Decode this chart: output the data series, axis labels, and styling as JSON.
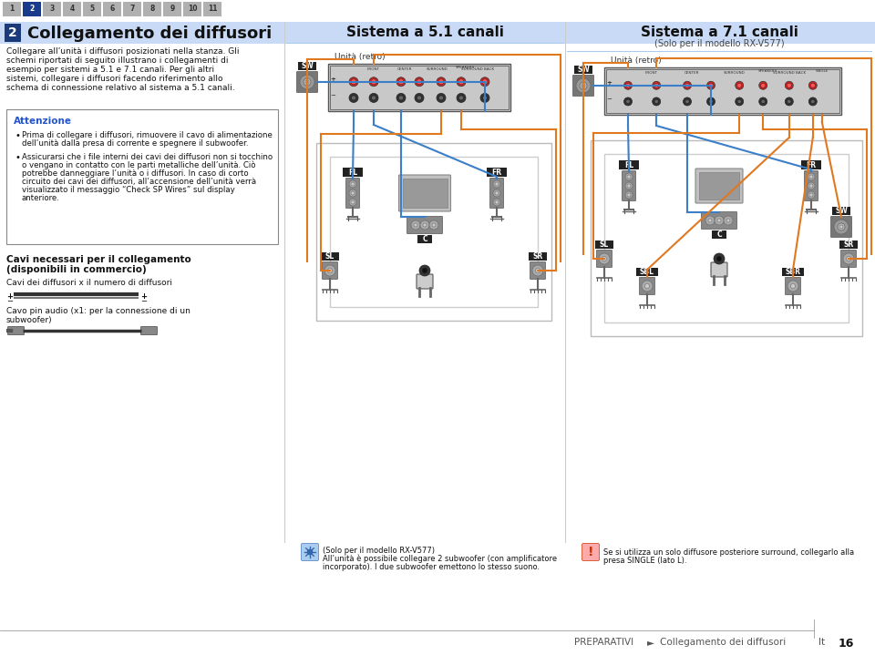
{
  "bg_color": "#ffffff",
  "tab_numbers": [
    "1",
    "2",
    "3",
    "4",
    "5",
    "6",
    "7",
    "8",
    "9",
    "10",
    "11"
  ],
  "tab_highlight": 1,
  "tab_bg_default": "#b0b0b0",
  "tab_bg_highlight": "#1a3a8c",
  "tab_text_default": "#333333",
  "tab_text_highlight": "#ffffff",
  "section_header_bg": "#c8daf5",
  "section_header_number": "2",
  "section_header_number_bg": "#1a3a7a",
  "section_header_text": "Collegamento dei diffusori",
  "intro_text": "Collegare all’unità i diffusori posizionati nella stanza. Gli schemi riportati di seguito illustrano i collegamenti di esempio per sistemi a 5.1 e 7.1 canali. Per gli altri sistemi, collegare i diffusori facendo riferimento allo schema di connessione relativo al sistema a 5.1 canali.",
  "attenzione_title": "Attenzione",
  "attenzione_color": "#2255cc",
  "attenzione_bullet1": "Prima di collegare i diffusori, rimuovere il cavo di alimentazione dell’unità dalla presa di corrente e spegnere il subwoofer.",
  "attenzione_bullet2": "Assicurarsi che i file interni dei cavi dei diffusori non si tocchino o vengano in contatto con le parti metalliche dell’unità. Ciò potrebbe danneggiare l’unità o i diffusori. In caso di corto circuito dei cavi dei diffusori, all’accensione dell’unità verrà visualizzato il messaggio “Check SP Wires” sul display anteriore.",
  "cavi_title": "Cavi necessari per il collegamento\n(disponibili in commercio)",
  "cavi_line1": "Cavi dei diffusori x il numero di diffusori",
  "cavi_line2": "Cavo pin audio (x1: per la connessione di un\nsubwoofer)",
  "col2_title": "Sistema a 5.1 canali",
  "col3_title": "Sistema a 7.1 canali",
  "col3_subtitle": "(Solo per il modello RX-V577)",
  "unita_retro_label": "Unità (retro)",
  "note1_icon_color": "#3366cc",
  "note1_text": "(Solo per il modello RX-V577)\nAll’unità è possibile collegare 2 subwoofer (con amplificatore\nincorporato). I due subwoofer emettono lo stesso suono.",
  "note2_icon_color": "#cc3300",
  "note2_text": "Se si utilizza un solo diffusore posteriore surround, collegarlo alla\npresa SINGLE (lato L).",
  "footer_text": "PREPARATIVI",
  "footer_arrow": "►",
  "footer_link": "Collegamento dei diffusori",
  "footer_lang": "It",
  "footer_page": "16",
  "wire_orange": "#e07820",
  "wire_blue": "#3a7fc8",
  "wire_lw": 1.5
}
